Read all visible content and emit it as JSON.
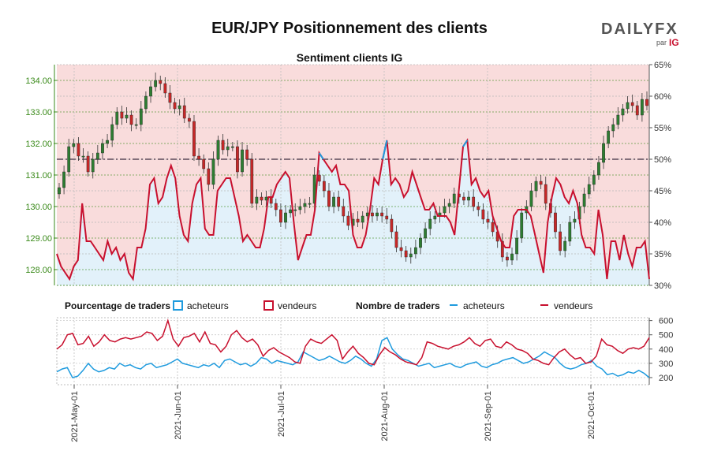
{
  "title": "EUR/JPY Positionnement des clients",
  "brand": {
    "logo": "DAILYFX",
    "par": "par",
    "ig": "IG"
  },
  "colors": {
    "buyers": "#1f9bde",
    "sellers": "#c8102e",
    "bg_sellers": "#f9dcdc",
    "bg_buyers": "#e2f1fa",
    "price_axis": "#3a8a1a",
    "candle_up": "#2e7d32",
    "candle_down": "#c62828"
  },
  "chart_data": [
    {
      "type": "line",
      "subtitle": "Sentiment clients IG",
      "price_ticks": [
        "134.00",
        "133.00",
        "132.00",
        "131.00",
        "130.00",
        "129.00",
        "128.00"
      ],
      "price_ylim": [
        127.5,
        134.5
      ],
      "pct_ticks": [
        "65%",
        "60%",
        "55%",
        "50%",
        "45%",
        "40%",
        "35%",
        "30%"
      ],
      "pct_ylim": [
        30,
        65
      ],
      "x_ticks": [
        "2021-May-01",
        "2021-Jun-01",
        "2021-Jul-01",
        "2021-Aug-01",
        "2021-Sep-01",
        "2021-Oct-01"
      ],
      "sentiment_sellers_pct": [
        35,
        33,
        32,
        31,
        33,
        34,
        43,
        37,
        37,
        36,
        35,
        34,
        37,
        35,
        36,
        34,
        35,
        32,
        31,
        36,
        36,
        39,
        46,
        47,
        43,
        44,
        47,
        49,
        47,
        41,
        38,
        37,
        43,
        46,
        47,
        39,
        38,
        38,
        45,
        46,
        47,
        47,
        44,
        41,
        37,
        38,
        37,
        36,
        36,
        39,
        44,
        44,
        46,
        47,
        48,
        47,
        40,
        34,
        36,
        38,
        38,
        42,
        51,
        50,
        49,
        48,
        49,
        46,
        46,
        45,
        38,
        36,
        36,
        38,
        42,
        47,
        46,
        50,
        53,
        46,
        47,
        46,
        44,
        45,
        48,
        46,
        44,
        42,
        42,
        43,
        41,
        41,
        41,
        40,
        38,
        45,
        52,
        53,
        46,
        47,
        45,
        44,
        45,
        41,
        39,
        37,
        36,
        36,
        41,
        42,
        42,
        42,
        41,
        38,
        35,
        32,
        40,
        44,
        47,
        46,
        44,
        43,
        45,
        43,
        38,
        36,
        36,
        35,
        42,
        38,
        31,
        37,
        37,
        34,
        38,
        35,
        33,
        36,
        36,
        37,
        31
      ],
      "sentiment_buyers_pct": [
        65,
        67,
        68,
        69,
        67,
        66,
        57,
        63,
        63,
        64,
        65,
        66,
        63,
        65,
        64,
        66,
        65,
        68,
        69,
        64,
        64,
        61,
        54,
        53,
        57,
        56,
        53,
        51,
        53,
        59,
        62,
        63,
        57,
        54,
        53,
        61,
        62,
        62,
        55,
        54,
        53,
        53,
        56,
        59,
        63,
        62,
        63,
        64,
        64,
        61,
        56,
        56,
        54,
        53,
        52,
        53,
        60,
        66,
        64,
        62,
        62,
        58,
        49,
        50,
        51,
        52,
        51,
        54,
        54,
        55,
        62,
        64,
        64,
        62,
        58,
        53,
        54,
        50,
        47,
        54,
        53,
        54,
        56,
        55,
        52,
        54,
        56,
        58,
        58,
        57,
        59,
        59,
        59,
        60,
        62,
        55,
        48,
        47,
        54,
        53,
        55,
        56,
        55,
        59,
        61,
        63,
        64,
        64,
        59,
        58,
        58,
        58,
        59,
        62,
        65,
        68,
        60,
        56,
        53,
        54,
        56,
        57,
        55,
        57,
        62,
        64,
        64,
        65,
        58,
        62,
        69,
        63,
        63,
        66,
        62,
        65,
        67,
        64,
        64,
        63,
        69
      ],
      "price_close": [
        130.6,
        131.1,
        131.9,
        132.0,
        131.6,
        131.6,
        131.1,
        131.5,
        131.7,
        132.0,
        132.1,
        132.6,
        133.0,
        132.8,
        132.9,
        132.6,
        132.6,
        133.1,
        133.5,
        133.8,
        134.0,
        133.9,
        133.6,
        133.3,
        133.1,
        133.2,
        132.8,
        132.7,
        131.6,
        131.5,
        131.2,
        130.7,
        131.5,
        132.1,
        131.8,
        131.9,
        131.9,
        131.1,
        131.8,
        131.5,
        130.1,
        130.3,
        130.2,
        130.3,
        130.1,
        129.9,
        129.5,
        129.8,
        129.9,
        129.9,
        130.0,
        130.1,
        130.1,
        131.0,
        130.8,
        130.5,
        130.0,
        130.3,
        130.0,
        129.7,
        129.4,
        129.6,
        129.5,
        129.7,
        129.8,
        129.7,
        129.8,
        129.7,
        129.6,
        129.2,
        128.7,
        128.6,
        128.4,
        128.5,
        128.7,
        129.0,
        129.3,
        129.6,
        129.7,
        129.8,
        130.0,
        130.1,
        130.4,
        130.3,
        130.2,
        130.3,
        130.0,
        129.9,
        129.6,
        129.5,
        129.2,
        128.9,
        128.4,
        128.3,
        128.5,
        129.0,
        129.8,
        130.0,
        130.5,
        130.8,
        130.7,
        130.1,
        129.8,
        129.2,
        128.6,
        128.9,
        129.5,
        129.6,
        130.0,
        130.4,
        130.7,
        131.0,
        131.4,
        132.0,
        132.4,
        132.6,
        132.9,
        133.1,
        133.3,
        133.2,
        132.9,
        133.4,
        133.2
      ],
      "series": [
        {
          "name": "acheteurs"
        },
        {
          "name": "vendeurs"
        }
      ]
    },
    {
      "type": "line",
      "y_ticks": [
        "600",
        "500",
        "400",
        "300",
        "200"
      ],
      "ylim": [
        150,
        620
      ],
      "traders_sellers": [
        400,
        430,
        500,
        510,
        430,
        440,
        490,
        420,
        450,
        500,
        460,
        450,
        470,
        480,
        470,
        480,
        490,
        520,
        510,
        460,
        490,
        600,
        470,
        420,
        480,
        490,
        510,
        450,
        520,
        440,
        430,
        380,
        420,
        500,
        530,
        480,
        450,
        470,
        430,
        350,
        390,
        410,
        380,
        360,
        340,
        310,
        300,
        420,
        470,
        450,
        440,
        470,
        500,
        460,
        330,
        380,
        420,
        370,
        340,
        300,
        290,
        360,
        410,
        380,
        360,
        330,
        310,
        300,
        290,
        340,
        450,
        440,
        420,
        410,
        400,
        420,
        430,
        450,
        480,
        440,
        420,
        460,
        470,
        420,
        410,
        450,
        430,
        400,
        390,
        370,
        330,
        320,
        300,
        290,
        340,
        380,
        400,
        360,
        330,
        340,
        300,
        310,
        350,
        470,
        430,
        420,
        390,
        370,
        400,
        410,
        400,
        420,
        480
      ],
      "traders_buyers": [
        240,
        260,
        270,
        200,
        210,
        250,
        300,
        260,
        240,
        250,
        270,
        260,
        300,
        280,
        290,
        270,
        260,
        290,
        300,
        270,
        280,
        290,
        310,
        330,
        300,
        290,
        280,
        270,
        290,
        280,
        300,
        270,
        320,
        330,
        310,
        290,
        300,
        280,
        300,
        340,
        330,
        300,
        320,
        310,
        300,
        290,
        310,
        380,
        360,
        340,
        320,
        330,
        350,
        330,
        310,
        300,
        320,
        350,
        330,
        300,
        280,
        330,
        460,
        480,
        400,
        360,
        330,
        320,
        300,
        280,
        290,
        300,
        270,
        280,
        290,
        300,
        280,
        270,
        290,
        300,
        310,
        280,
        270,
        290,
        300,
        320,
        330,
        340,
        320,
        300,
        310,
        330,
        350,
        380,
        360,
        340,
        300,
        270,
        260,
        270,
        290,
        300,
        320,
        280,
        260,
        220,
        230,
        210,
        220,
        240,
        230,
        250,
        230,
        200
      ]
    }
  ],
  "legend": {
    "pct_label": "Pourcentage de traders",
    "pct_buyers": "acheteurs",
    "pct_sellers": "vendeurs",
    "count_label": "Nombre de traders",
    "count_buyers": "acheteurs",
    "count_sellers": "vendeurs"
  }
}
